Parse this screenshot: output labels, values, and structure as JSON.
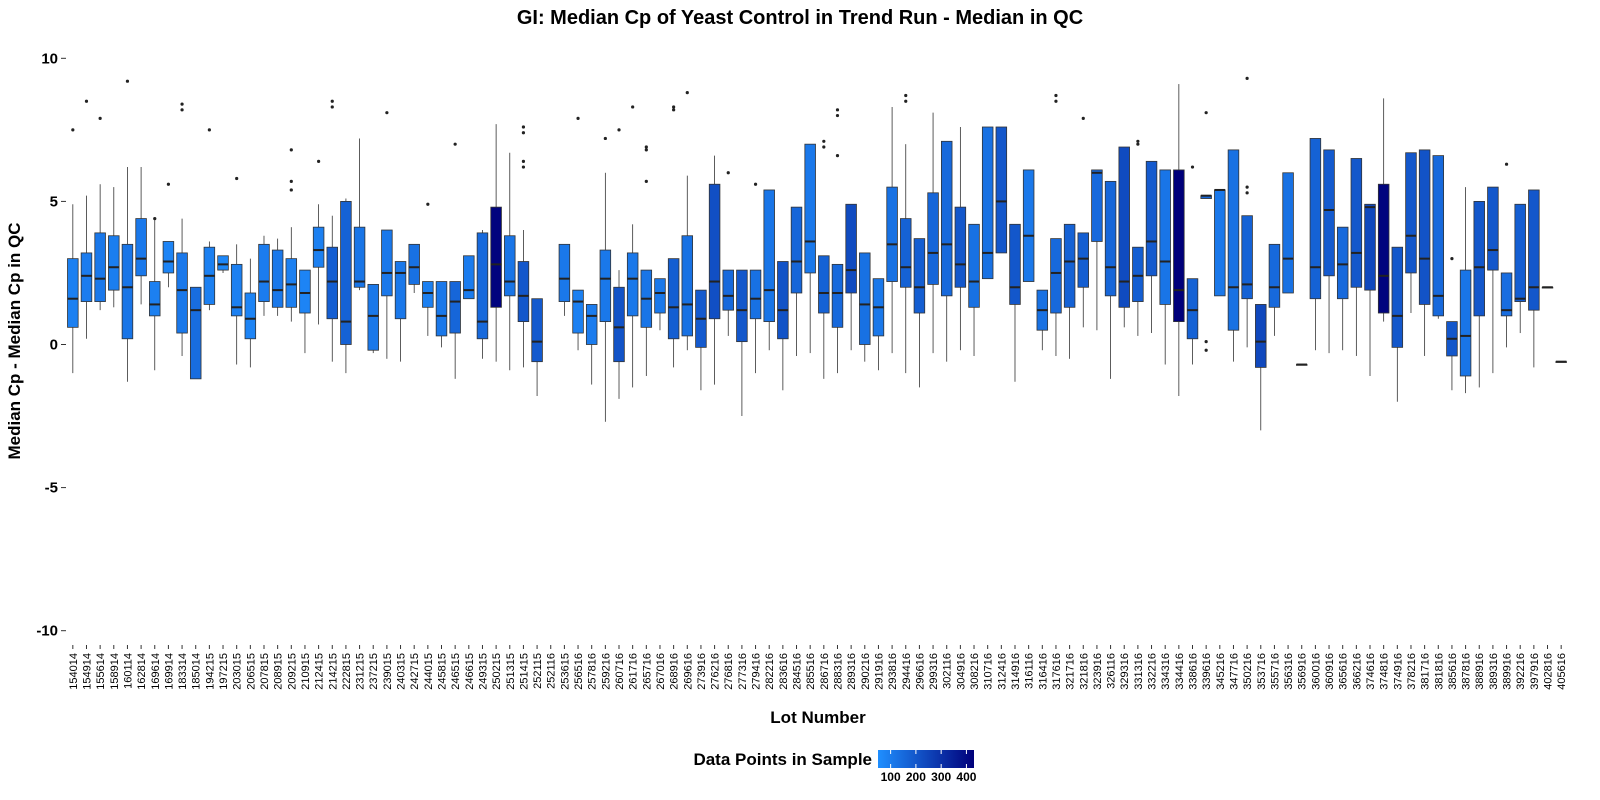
{
  "chart_data": {
    "type": "box",
    "title": "GI: Median Cp of Yeast Control in Trend Run - Median in QC",
    "xlabel": "Lot Number",
    "ylabel": "Median Cp - Median Cp in QC",
    "ylim": [
      -10.5,
      10.5
    ],
    "yticks": [
      10,
      5,
      0,
      -5,
      -10
    ],
    "ytick_labels": [
      "10",
      "5",
      "0",
      "-5",
      "-10"
    ],
    "grid": false,
    "legend": {
      "title": "Data Points in Sample",
      "placement": "bottom",
      "tick_labels": [
        "100",
        "200",
        "300",
        "400"
      ],
      "color_low": "#1f8fff",
      "color_high": "#00007a",
      "range": [
        50,
        430
      ]
    },
    "box_fields": [
      "lot",
      "whisker_low",
      "q1",
      "median",
      "q3",
      "whisker_high",
      "n_points",
      "outliers"
    ],
    "boxes": [
      [
        "154014",
        -1.0,
        0.6,
        1.6,
        3.0,
        4.9,
        90,
        [
          7.5
        ]
      ],
      [
        "154914",
        0.2,
        1.5,
        2.4,
        3.2,
        5.2,
        100,
        [
          8.5
        ]
      ],
      [
        "155614",
        1.2,
        1.5,
        2.3,
        3.9,
        5.6,
        110,
        [
          7.9
        ]
      ],
      [
        "158914",
        1.3,
        1.9,
        2.7,
        3.8,
        5.5,
        95,
        []
      ],
      [
        "160114",
        -1.3,
        0.2,
        2.0,
        3.5,
        6.2,
        120,
        [
          9.2
        ]
      ],
      [
        "162814",
        1.4,
        2.4,
        3.0,
        4.4,
        6.2,
        110,
        []
      ],
      [
        "169614",
        -0.9,
        1.0,
        1.4,
        2.2,
        4.4,
        90,
        [
          4.4
        ]
      ],
      [
        "169914",
        2.0,
        2.5,
        2.9,
        3.6,
        3.6,
        80,
        [
          5.6
        ]
      ],
      [
        "183314",
        -0.4,
        0.4,
        1.9,
        3.2,
        4.4,
        110,
        [
          8.2,
          8.4
        ]
      ],
      [
        "185014",
        -1.2,
        -1.2,
        1.2,
        2.0,
        2.0,
        140,
        []
      ],
      [
        "194215",
        1.2,
        1.4,
        2.4,
        3.4,
        3.6,
        90,
        [
          7.5
        ]
      ],
      [
        "197215",
        2.5,
        2.6,
        2.8,
        3.1,
        3.1,
        70,
        []
      ],
      [
        "203015",
        -0.7,
        1.0,
        1.3,
        2.8,
        3.5,
        90,
        [
          5.8
        ]
      ],
      [
        "206515",
        -0.8,
        0.2,
        0.9,
        1.8,
        3.0,
        80,
        []
      ],
      [
        "207815",
        1.0,
        1.5,
        2.2,
        3.5,
        3.8,
        100,
        []
      ],
      [
        "208915",
        1.0,
        1.3,
        1.9,
        3.3,
        3.7,
        110,
        []
      ],
      [
        "209215",
        0.8,
        1.3,
        2.1,
        3.0,
        4.1,
        90,
        [
          5.4,
          5.7,
          6.8
        ]
      ],
      [
        "210915",
        -0.3,
        1.1,
        1.8,
        2.6,
        2.6,
        80,
        []
      ],
      [
        "212415",
        0.7,
        2.7,
        3.3,
        4.1,
        4.9,
        90,
        [
          6.4
        ]
      ],
      [
        "214215",
        -0.6,
        0.9,
        2.2,
        3.4,
        4.5,
        180,
        [
          8.3,
          8.5
        ]
      ],
      [
        "222815",
        -1.0,
        0.0,
        0.8,
        5.0,
        5.1,
        170,
        []
      ],
      [
        "231215",
        1.9,
        2.0,
        2.2,
        4.1,
        7.2,
        120,
        []
      ],
      [
        "237215",
        -0.3,
        -0.2,
        1.0,
        2.1,
        2.1,
        110,
        []
      ],
      [
        "239015",
        -0.5,
        1.7,
        2.5,
        4.0,
        4.0,
        110,
        [
          8.1
        ]
      ],
      [
        "240315",
        -0.6,
        0.9,
        2.5,
        2.9,
        2.9,
        110,
        []
      ],
      [
        "242715",
        1.8,
        2.1,
        2.7,
        3.5,
        3.5,
        130,
        []
      ],
      [
        "244015",
        0.3,
        1.3,
        1.8,
        2.2,
        2.2,
        90,
        [
          4.9
        ]
      ],
      [
        "245815",
        -0.1,
        0.3,
        1.0,
        2.2,
        2.2,
        110,
        []
      ],
      [
        "246515",
        -1.2,
        0.4,
        1.5,
        2.2,
        2.2,
        160,
        [
          7.0
        ]
      ],
      [
        "246615",
        1.6,
        1.6,
        1.9,
        3.1,
        3.1,
        100,
        []
      ],
      [
        "249315",
        -0.5,
        0.2,
        0.8,
        3.9,
        4.0,
        150,
        []
      ],
      [
        "250215",
        -0.6,
        1.3,
        2.8,
        4.8,
        7.7,
        420,
        []
      ],
      [
        "251315",
        -0.9,
        1.7,
        2.2,
        3.8,
        6.7,
        120,
        []
      ],
      [
        "251415",
        -0.8,
        0.8,
        1.7,
        2.9,
        4.0,
        200,
        [
          6.2,
          6.4,
          7.4,
          7.6
        ]
      ],
      [
        "252115",
        -1.8,
        -0.6,
        0.1,
        1.6,
        1.6,
        190,
        []
      ],
      [
        "252116",
        null,
        null,
        null,
        null,
        null,
        0,
        []
      ],
      [
        "253615",
        1.0,
        1.5,
        2.3,
        3.5,
        3.5,
        110,
        []
      ],
      [
        "256516",
        -0.2,
        0.4,
        1.5,
        1.9,
        1.9,
        90,
        [
          7.9
        ]
      ],
      [
        "257816",
        -1.4,
        0.0,
        1.0,
        1.4,
        1.4,
        100,
        []
      ],
      [
        "259216",
        -2.7,
        0.8,
        2.3,
        3.3,
        6.0,
        110,
        [
          7.2
        ]
      ],
      [
        "260716",
        -1.9,
        -0.6,
        0.6,
        2.0,
        2.6,
        210,
        [
          7.5
        ]
      ],
      [
        "261716",
        -1.5,
        1.0,
        2.3,
        3.2,
        4.2,
        110,
        [
          8.3
        ]
      ],
      [
        "265716",
        -1.1,
        0.6,
        1.6,
        2.6,
        2.6,
        120,
        [
          5.7,
          6.8,
          6.9
        ]
      ],
      [
        "267016",
        0.5,
        1.1,
        1.8,
        2.3,
        2.3,
        110,
        []
      ],
      [
        "268916",
        -0.8,
        0.2,
        1.3,
        3.0,
        3.0,
        180,
        [
          8.2,
          8.3
        ]
      ],
      [
        "269616",
        -0.2,
        0.3,
        1.4,
        3.8,
        5.9,
        130,
        [
          8.8
        ]
      ],
      [
        "273916",
        -1.6,
        -0.1,
        0.9,
        1.9,
        1.9,
        190,
        []
      ],
      [
        "276216",
        -1.4,
        0.9,
        2.2,
        5.6,
        6.6,
        220,
        []
      ],
      [
        "276816",
        0.3,
        1.2,
        1.7,
        2.6,
        2.6,
        150,
        [
          6.0
        ]
      ],
      [
        "277316",
        -2.5,
        0.1,
        1.2,
        2.6,
        2.6,
        200,
        []
      ],
      [
        "279416",
        -1.0,
        0.9,
        1.6,
        2.6,
        2.6,
        130,
        [
          5.6
        ]
      ],
      [
        "282216",
        -0.2,
        0.8,
        1.9,
        5.4,
        5.4,
        120,
        []
      ],
      [
        "283616",
        -1.6,
        0.2,
        1.2,
        2.9,
        2.9,
        210,
        []
      ],
      [
        "284516",
        -0.4,
        1.8,
        2.9,
        4.8,
        4.8,
        160,
        []
      ],
      [
        "285516",
        -0.3,
        2.5,
        3.6,
        7.0,
        7.0,
        110,
        []
      ],
      [
        "286716",
        -1.2,
        1.1,
        1.8,
        3.1,
        3.1,
        170,
        [
          6.9,
          7.1
        ]
      ],
      [
        "288316",
        -1.0,
        0.6,
        1.8,
        2.8,
        2.8,
        150,
        [
          6.6,
          8.0,
          8.2
        ]
      ],
      [
        "289316",
        -0.2,
        1.8,
        2.6,
        4.9,
        4.9,
        230,
        []
      ],
      [
        "290216",
        -0.6,
        0.0,
        1.4,
        3.2,
        3.2,
        130,
        []
      ],
      [
        "291916",
        -0.9,
        0.3,
        1.3,
        2.3,
        2.3,
        110,
        []
      ],
      [
        "293816",
        -0.3,
        2.2,
        3.5,
        5.5,
        8.3,
        130,
        []
      ],
      [
        "294416",
        -1.0,
        2.0,
        2.7,
        4.4,
        7.0,
        170,
        [
          8.5,
          8.7
        ]
      ],
      [
        "296616",
        -1.5,
        1.1,
        2.0,
        3.7,
        3.7,
        180,
        []
      ],
      [
        "299316",
        -0.3,
        2.1,
        3.2,
        5.3,
        8.1,
        160,
        []
      ],
      [
        "302116",
        -0.6,
        1.7,
        3.5,
        7.1,
        7.1,
        150,
        []
      ],
      [
        "304916",
        -0.2,
        2.0,
        2.8,
        4.8,
        7.6,
        200,
        []
      ],
      [
        "308216",
        -0.4,
        1.3,
        2.2,
        4.2,
        4.2,
        130,
        []
      ],
      [
        "310716",
        2.3,
        2.3,
        3.2,
        7.6,
        7.6,
        130,
        []
      ],
      [
        "312416",
        3.2,
        3.2,
        5.0,
        7.6,
        7.6,
        200,
        []
      ],
      [
        "314916",
        -1.3,
        1.4,
        2.0,
        4.2,
        4.2,
        200,
        []
      ],
      [
        "316116",
        2.2,
        2.2,
        3.8,
        6.1,
        6.1,
        110,
        []
      ],
      [
        "316416",
        -0.2,
        0.5,
        1.2,
        1.9,
        1.9,
        130,
        []
      ],
      [
        "317616",
        -0.4,
        1.1,
        2.5,
        3.7,
        3.7,
        150,
        [
          8.5,
          8.7
        ]
      ],
      [
        "321716",
        -0.5,
        1.3,
        2.9,
        4.2,
        4.2,
        170,
        []
      ],
      [
        "321816",
        0.6,
        2.0,
        3.0,
        3.9,
        3.9,
        180,
        [
          7.9
        ]
      ],
      [
        "323916",
        0.5,
        3.6,
        6.0,
        6.1,
        6.1,
        150,
        []
      ],
      [
        "326116",
        -1.2,
        1.7,
        2.7,
        5.7,
        5.7,
        160,
        []
      ],
      [
        "329316",
        0.6,
        1.3,
        2.2,
        6.9,
        6.9,
        230,
        []
      ],
      [
        "331316",
        0.3,
        1.5,
        2.4,
        3.4,
        3.4,
        180,
        [
          7.0,
          7.1
        ]
      ],
      [
        "332216",
        0.4,
        2.4,
        3.6,
        6.4,
        6.4,
        190,
        []
      ],
      [
        "334316",
        -0.7,
        1.4,
        2.9,
        6.1,
        6.1,
        120,
        []
      ],
      [
        "334416",
        -1.8,
        0.8,
        1.9,
        6.1,
        9.1,
        430,
        []
      ],
      [
        "338616",
        -0.7,
        0.2,
        1.2,
        2.3,
        2.3,
        170,
        [
          6.2
        ]
      ],
      [
        "339616",
        5.1,
        5.1,
        5.2,
        5.2,
        5.2,
        150,
        [
          -0.2,
          0.1,
          8.1
        ]
      ],
      [
        "345216",
        1.7,
        1.7,
        5.4,
        5.4,
        5.4,
        110,
        []
      ],
      [
        "347716",
        -0.6,
        0.5,
        2.0,
        6.8,
        6.8,
        130,
        []
      ],
      [
        "350216",
        -0.1,
        1.6,
        2.1,
        4.5,
        4.5,
        170,
        [
          5.3,
          5.5,
          9.3
        ]
      ],
      [
        "353716",
        -3.0,
        -0.8,
        0.1,
        1.4,
        1.4,
        240,
        []
      ],
      [
        "355716",
        0.3,
        1.3,
        2.0,
        3.5,
        3.5,
        150,
        []
      ],
      [
        "356316",
        1.8,
        1.8,
        3.0,
        6.0,
        6.0,
        130,
        []
      ],
      [
        "356916",
        -0.7,
        -0.7,
        -0.7,
        -0.7,
        -0.7,
        40,
        []
      ],
      [
        "360016",
        -0.2,
        1.6,
        2.7,
        7.2,
        7.2,
        170,
        []
      ],
      [
        "360916",
        -0.3,
        2.4,
        4.7,
        6.8,
        6.8,
        190,
        []
      ],
      [
        "365616",
        -0.2,
        1.6,
        2.8,
        4.1,
        4.1,
        150,
        []
      ],
      [
        "366216",
        -0.4,
        2.0,
        3.2,
        6.5,
        6.5,
        200,
        []
      ],
      [
        "374616",
        -1.1,
        1.9,
        4.8,
        4.9,
        4.9,
        240,
        []
      ],
      [
        "374816",
        0.8,
        1.1,
        2.4,
        5.6,
        8.6,
        420,
        []
      ],
      [
        "374916",
        -2.0,
        -0.1,
        1.0,
        3.4,
        3.4,
        200,
        []
      ],
      [
        "378216",
        1.1,
        2.5,
        3.8,
        6.7,
        6.7,
        200,
        []
      ],
      [
        "381716",
        -0.4,
        1.4,
        3.0,
        6.8,
        6.8,
        210,
        []
      ],
      [
        "381816",
        0.9,
        1.0,
        1.7,
        6.6,
        6.6,
        150,
        []
      ],
      [
        "385616",
        -1.6,
        -0.4,
        0.2,
        0.8,
        0.8,
        200,
        [
          3.0
        ]
      ],
      [
        "387816",
        -1.7,
        -1.1,
        0.3,
        2.6,
        5.5,
        120,
        []
      ],
      [
        "388916",
        -1.5,
        1.0,
        2.7,
        5.0,
        5.0,
        200,
        []
      ],
      [
        "389316",
        -1.0,
        2.6,
        3.3,
        5.5,
        5.5,
        200,
        []
      ],
      [
        "389916",
        -0.1,
        1.0,
        1.2,
        2.5,
        2.5,
        140,
        [
          6.3
        ]
      ],
      [
        "392216",
        0.4,
        1.5,
        1.6,
        4.9,
        4.9,
        180,
        []
      ],
      [
        "397916",
        -0.8,
        1.2,
        2.0,
        5.4,
        5.4,
        200,
        []
      ],
      [
        "402816",
        2.0,
        2.0,
        2.0,
        2.0,
        2.0,
        60,
        []
      ],
      [
        "405616",
        -0.6,
        -0.6,
        -0.6,
        -0.6,
        -0.6,
        60,
        []
      ]
    ]
  }
}
